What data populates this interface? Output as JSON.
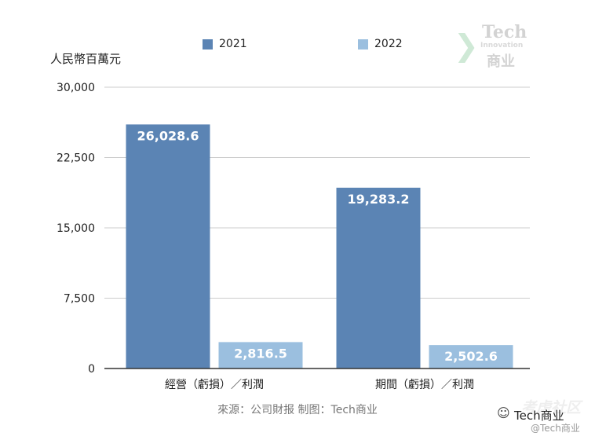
{
  "chart_data": {
    "type": "bar",
    "unit_label": "人民幣百萬元",
    "categories": [
      "經營（虧損）／利潤",
      "期間（虧損）／利潤"
    ],
    "series": [
      {
        "name": "2021",
        "color": "#5b84b4",
        "values": [
          26028.6,
          19283.2
        ],
        "labels": [
          "26,028.6",
          "19,283.2"
        ]
      },
      {
        "name": "2022",
        "color": "#9bbfdf",
        "values": [
          2816.5,
          2502.6
        ],
        "labels": [
          "2,816.5",
          "2,502.6"
        ]
      }
    ],
    "ylim": [
      0,
      30000
    ],
    "yticks": [
      0,
      7500,
      15000,
      22500,
      30000
    ],
    "ytick_labels": [
      "0",
      "7,500",
      "15,000",
      "22,500",
      "30,000"
    ],
    "grid": true,
    "legend_position": "top",
    "source": "來源：公司財报 制图：Tech商业"
  },
  "watermark": {
    "brand_top": "Tech",
    "brand_mid": "Innovation",
    "brand_bottom": "商业",
    "community": "考虑社区",
    "account_name": "Tech商业",
    "account_handle": "@Tech商业"
  }
}
